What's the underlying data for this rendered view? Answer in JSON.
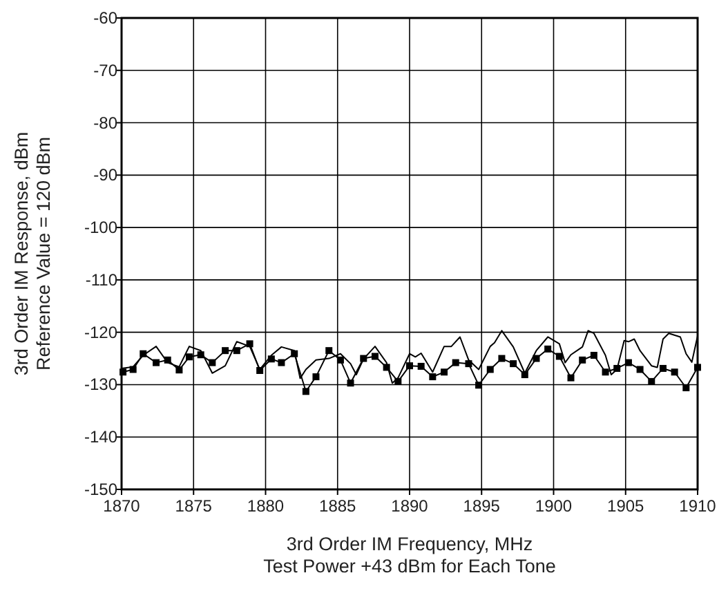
{
  "chart_data": {
    "type": "line",
    "xlabel": "3rd Order IM Frequency, MHz\nTest Power +43 dBm for Each Tone",
    "ylabel": "3rd Order IM Response, dBm\nReference Value = 120 dBm",
    "xlim": [
      1870,
      1910
    ],
    "ylim": [
      -150,
      -60
    ],
    "xticks": [
      1870,
      1875,
      1880,
      1885,
      1890,
      1895,
      1900,
      1905,
      1910
    ],
    "yticks": [
      -150,
      -140,
      -130,
      -120,
      -110,
      -100,
      -90,
      -80,
      -70,
      -60
    ],
    "grid": true,
    "series": [
      {
        "color": "#000000",
        "marker": "square",
        "x": [
          1870.1,
          1870.8,
          1871.5,
          1872.4,
          1873.2,
          1874.0,
          1874.7,
          1875.5,
          1876.3,
          1877.2,
          1878.0,
          1878.9,
          1879.6,
          1880.4,
          1881.1,
          1882.0,
          1882.8,
          1883.5,
          1884.4,
          1885.2,
          1885.9,
          1886.8,
          1887.6,
          1888.4,
          1889.2,
          1890.0,
          1890.8,
          1891.6,
          1892.4,
          1893.2,
          1894.1,
          1894.8,
          1895.6,
          1896.4,
          1897.2,
          1898.0,
          1898.8,
          1899.6,
          1900.4,
          1901.2,
          1902.0,
          1902.8,
          1903.6,
          1904.4,
          1905.2,
          1906.0,
          1906.8,
          1907.6,
          1908.4,
          1909.2,
          1910.0
        ],
        "values": [
          -127.6,
          -127.1,
          -124.1,
          -125.8,
          -125.3,
          -127.2,
          -124.7,
          -124.3,
          -125.8,
          -123.5,
          -123.5,
          -122.2,
          -127.3,
          -125.1,
          -125.8,
          -124.1,
          -131.3,
          -128.5,
          -123.5,
          -125.3,
          -129.7,
          -125.0,
          -124.6,
          -126.7,
          -129.4,
          -126.4,
          -126.5,
          -128.5,
          -127.6,
          -125.8,
          -126.0,
          -130.1,
          -127.1,
          -125.0,
          -126.0,
          -128.1,
          -125.0,
          -123.2,
          -124.6,
          -128.7,
          -125.3,
          -124.4,
          -127.6,
          -126.9,
          -125.8,
          -127.1,
          -129.4,
          -126.9,
          -127.6,
          -130.6,
          -126.7
        ]
      },
      {
        "color": "#000000",
        "marker": "none",
        "x": [
          1870,
          1870.8,
          1871.5,
          1872.4,
          1873.2,
          1874.0,
          1874.7,
          1875.5,
          1876.3,
          1877.2,
          1878.0,
          1878.9,
          1879.6,
          1880.4,
          1881.1,
          1882.0,
          1882.4,
          1882.8,
          1883.5,
          1884.4,
          1885.2,
          1885.9,
          1886.3,
          1886.8,
          1887.6,
          1888.4,
          1888.8,
          1889.2,
          1890.0,
          1890.4,
          1890.8,
          1891.6,
          1892.4,
          1892.9,
          1893.5,
          1894.1,
          1894.8,
          1895.6,
          1895.9,
          1896.4,
          1897.2,
          1898.0,
          1898.8,
          1899.6,
          1900.4,
          1900.8,
          1901.2,
          1902.0,
          1902.4,
          1902.8,
          1903.6,
          1904.0,
          1904.4,
          1904.9,
          1905.2,
          1905.6,
          1906.0,
          1906.8,
          1907.2,
          1907.6,
          1908.0,
          1908.8,
          1909.2,
          1909.6,
          1910.0
        ],
        "values": [
          -126.9,
          -126.6,
          -124.4,
          -122.7,
          -125.8,
          -126.6,
          -122.7,
          -123.5,
          -127.8,
          -126.4,
          -121.8,
          -122.7,
          -127.1,
          -124.4,
          -122.8,
          -123.5,
          -128.8,
          -127.1,
          -125.3,
          -125.0,
          -124.1,
          -126.0,
          -128.1,
          -125.1,
          -122.7,
          -125.8,
          -129.7,
          -128.7,
          -124.1,
          -124.7,
          -124.0,
          -127.6,
          -122.7,
          -122.7,
          -120.9,
          -125.3,
          -127.1,
          -122.7,
          -122.0,
          -119.7,
          -122.8,
          -127.8,
          -123.5,
          -120.9,
          -122.2,
          -125.8,
          -124.3,
          -122.8,
          -119.7,
          -120.2,
          -124.4,
          -128.1,
          -127.1,
          -121.6,
          -121.8,
          -121.3,
          -123.5,
          -126.4,
          -126.7,
          -121.3,
          -120.2,
          -120.9,
          -124.1,
          -125.7,
          -120.7
        ]
      }
    ]
  }
}
